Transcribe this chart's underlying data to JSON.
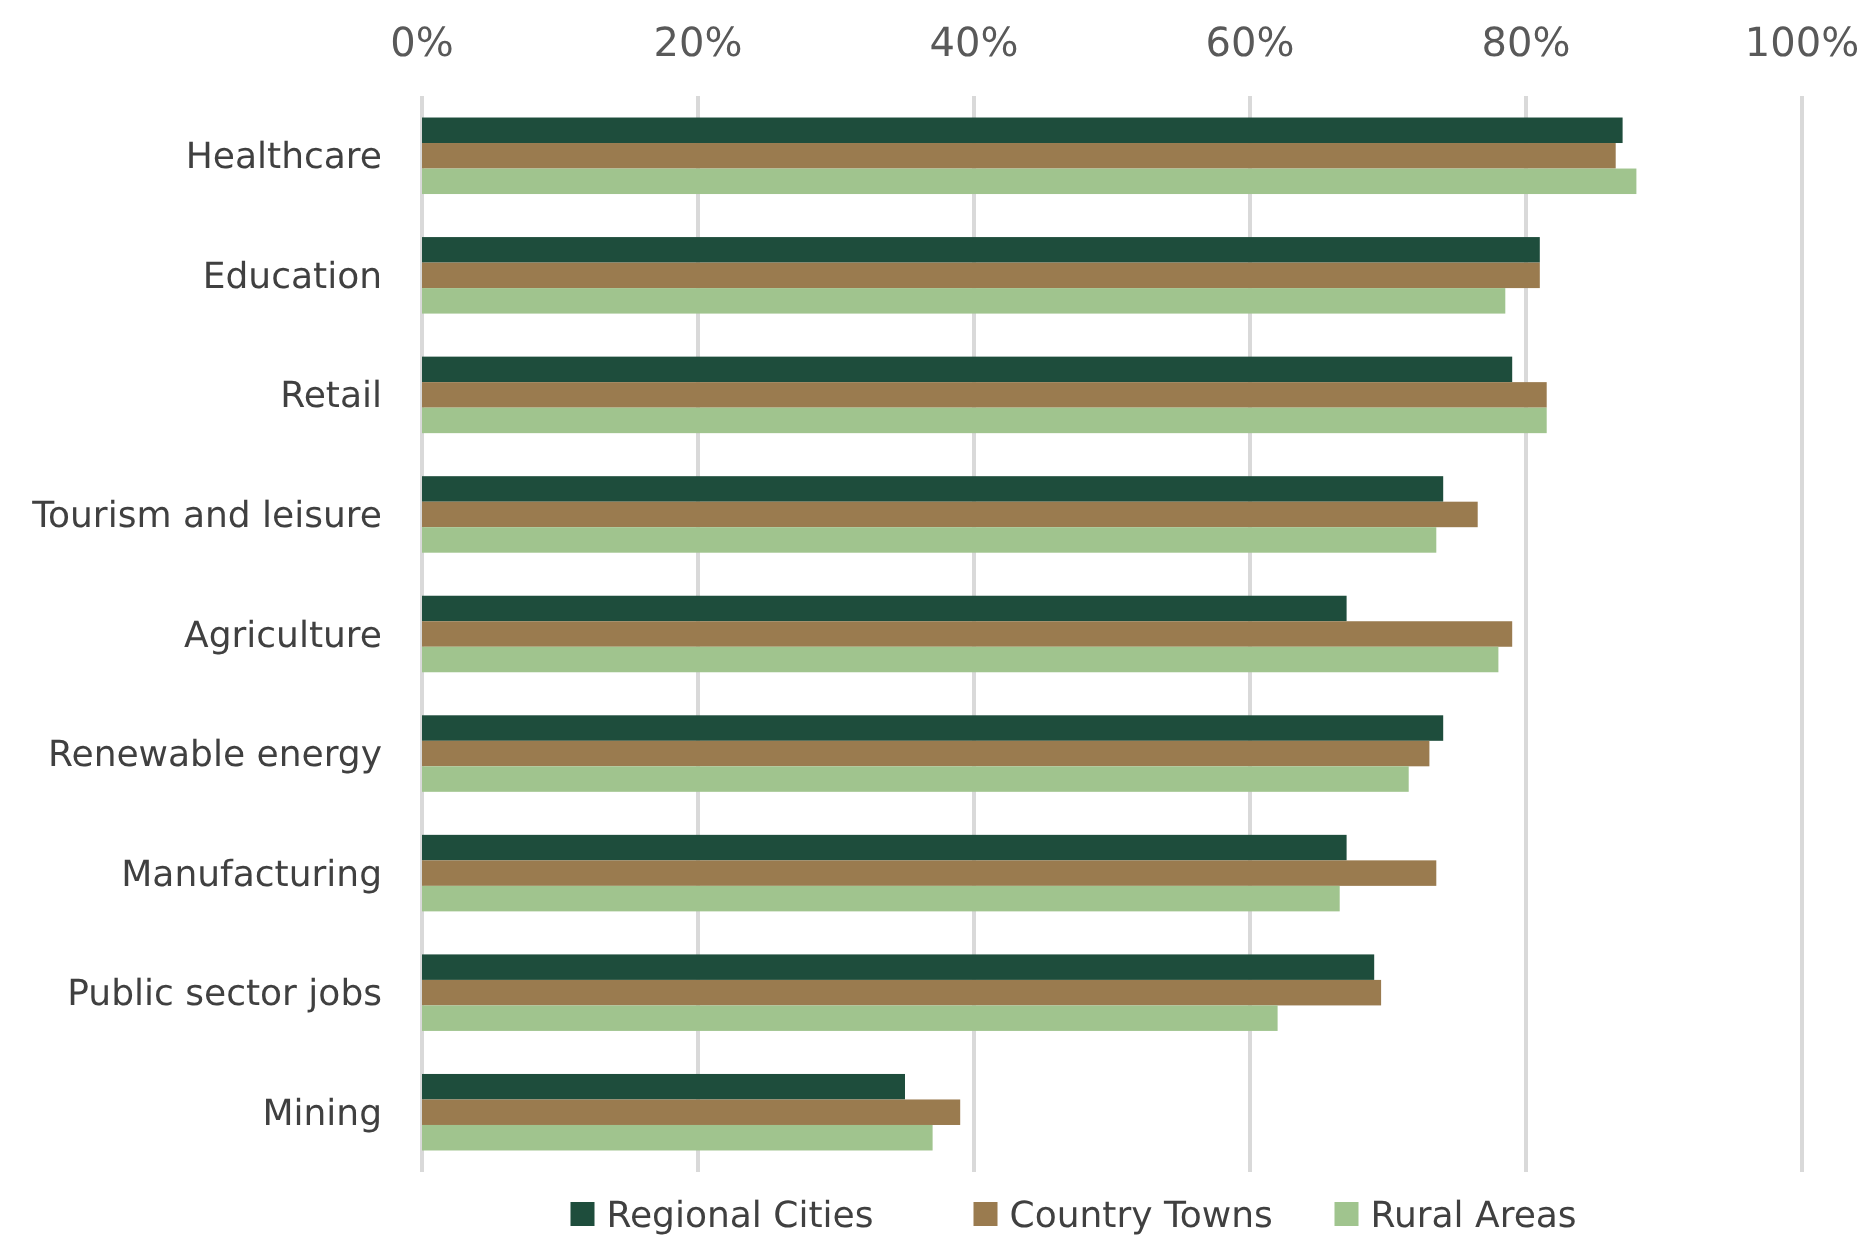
{
  "chart_data": {
    "type": "bar",
    "orientation": "horizontal",
    "categories": [
      "Healthcare",
      "Education",
      "Retail",
      "Tourism and leisure",
      "Agriculture",
      "Renewable energy",
      "Manufacturing",
      "Public sector jobs",
      "Mining"
    ],
    "series": [
      {
        "name": "Regional Cities",
        "color": "#1e4d3c",
        "values": [
          87,
          81,
          79,
          74,
          67,
          74,
          67,
          69,
          35
        ]
      },
      {
        "name": "Country Towns",
        "color": "#9a7b4f",
        "values": [
          86.5,
          81,
          81.5,
          76.5,
          79,
          73,
          73.5,
          69.5,
          39
        ]
      },
      {
        "name": "Rural Areas",
        "color": "#a0c48e",
        "values": [
          88,
          78.5,
          81.5,
          73.5,
          78,
          71.5,
          66.5,
          62,
          37
        ]
      }
    ],
    "xlim": [
      0,
      100
    ],
    "xticks": [
      {
        "value": 0,
        "label": "0%"
      },
      {
        "value": 20,
        "label": "20%"
      },
      {
        "value": 40,
        "label": "40%"
      },
      {
        "value": 60,
        "label": "60%"
      },
      {
        "value": 80,
        "label": "80%"
      },
      {
        "value": 100,
        "label": "100%"
      }
    ],
    "grid": "x",
    "legend": "bottom"
  }
}
